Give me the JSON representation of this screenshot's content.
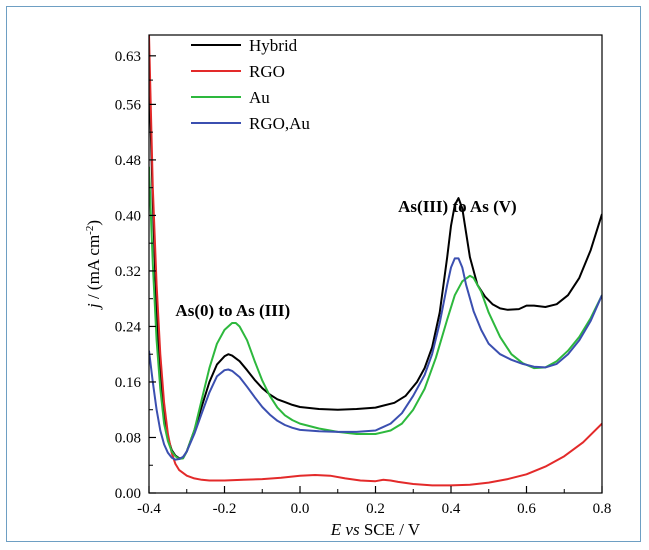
{
  "chart_data": {
    "type": "line",
    "xlabel": {
      "italic": "E vs",
      "rest": " SCE / V"
    },
    "ylabel": {
      "italic": "j",
      "rest": " / (mA cm",
      "sup": "-2",
      "end": ")"
    },
    "xlim": [
      -0.4,
      0.8
    ],
    "ylim": [
      0.0,
      0.66
    ],
    "x_ticks": [
      -0.4,
      -0.2,
      0.0,
      0.2,
      0.4,
      0.6,
      0.8
    ],
    "x_tick_labels": [
      "-0.4",
      "-0.2",
      "0.0",
      "0.2",
      "0.4",
      "0.6",
      "0.8"
    ],
    "y_ticks": [
      0.0,
      0.08,
      0.16,
      0.24,
      0.32,
      0.4,
      0.48,
      0.56,
      0.63
    ],
    "y_tick_labels": [
      "0.00",
      "0.08",
      "0.16",
      "0.24",
      "0.32",
      "0.40",
      "0.48",
      "0.56",
      "0.63"
    ],
    "grid": false,
    "legend_position": "top-left",
    "annotations": [
      {
        "text": "As(0) to As (III)",
        "x": -0.33,
        "y": 0.255
      },
      {
        "text": "As(III) to As (V)",
        "x": 0.26,
        "y": 0.405
      }
    ],
    "series": [
      {
        "name": "Hybrid",
        "color": "#000000",
        "points": [
          [
            -0.4,
            0.61
          ],
          [
            -0.39,
            0.42
          ],
          [
            -0.38,
            0.26
          ],
          [
            -0.37,
            0.17
          ],
          [
            -0.36,
            0.11
          ],
          [
            -0.35,
            0.08
          ],
          [
            -0.34,
            0.062
          ],
          [
            -0.33,
            0.054
          ],
          [
            -0.32,
            0.05
          ],
          [
            -0.31,
            0.05
          ],
          [
            -0.3,
            0.06
          ],
          [
            -0.28,
            0.09
          ],
          [
            -0.26,
            0.125
          ],
          [
            -0.24,
            0.16
          ],
          [
            -0.22,
            0.185
          ],
          [
            -0.2,
            0.197
          ],
          [
            -0.19,
            0.2
          ],
          [
            -0.18,
            0.198
          ],
          [
            -0.16,
            0.19
          ],
          [
            -0.14,
            0.177
          ],
          [
            -0.12,
            0.163
          ],
          [
            -0.1,
            0.151
          ],
          [
            -0.08,
            0.142
          ],
          [
            -0.06,
            0.135
          ],
          [
            -0.04,
            0.131
          ],
          [
            -0.02,
            0.127
          ],
          [
            0.0,
            0.124
          ],
          [
            0.05,
            0.121
          ],
          [
            0.1,
            0.12
          ],
          [
            0.15,
            0.121
          ],
          [
            0.2,
            0.123
          ],
          [
            0.25,
            0.13
          ],
          [
            0.28,
            0.14
          ],
          [
            0.31,
            0.16
          ],
          [
            0.33,
            0.18
          ],
          [
            0.35,
            0.21
          ],
          [
            0.37,
            0.26
          ],
          [
            0.39,
            0.34
          ],
          [
            0.4,
            0.385
          ],
          [
            0.41,
            0.415
          ],
          [
            0.42,
            0.425
          ],
          [
            0.43,
            0.41
          ],
          [
            0.44,
            0.375
          ],
          [
            0.45,
            0.34
          ],
          [
            0.47,
            0.3
          ],
          [
            0.49,
            0.283
          ],
          [
            0.51,
            0.272
          ],
          [
            0.53,
            0.266
          ],
          [
            0.55,
            0.264
          ],
          [
            0.58,
            0.265
          ],
          [
            0.6,
            0.27
          ],
          [
            0.62,
            0.27
          ],
          [
            0.65,
            0.268
          ],
          [
            0.68,
            0.272
          ],
          [
            0.71,
            0.285
          ],
          [
            0.74,
            0.31
          ],
          [
            0.77,
            0.35
          ],
          [
            0.8,
            0.402
          ]
        ]
      },
      {
        "name": "RGO",
        "color": "#e32a2a",
        "points": [
          [
            -0.4,
            0.66
          ],
          [
            -0.395,
            0.55
          ],
          [
            -0.39,
            0.44
          ],
          [
            -0.38,
            0.3
          ],
          [
            -0.37,
            0.2
          ],
          [
            -0.36,
            0.13
          ],
          [
            -0.35,
            0.085
          ],
          [
            -0.34,
            0.058
          ],
          [
            -0.33,
            0.042
          ],
          [
            -0.32,
            0.033
          ],
          [
            -0.3,
            0.025
          ],
          [
            -0.28,
            0.021
          ],
          [
            -0.26,
            0.019
          ],
          [
            -0.24,
            0.018
          ],
          [
            -0.2,
            0.018
          ],
          [
            -0.15,
            0.019
          ],
          [
            -0.1,
            0.02
          ],
          [
            -0.05,
            0.022
          ],
          [
            0.0,
            0.025
          ],
          [
            0.04,
            0.026
          ],
          [
            0.08,
            0.025
          ],
          [
            0.12,
            0.021
          ],
          [
            0.16,
            0.018
          ],
          [
            0.2,
            0.017
          ],
          [
            0.22,
            0.019
          ],
          [
            0.24,
            0.018
          ],
          [
            0.26,
            0.016
          ],
          [
            0.3,
            0.013
          ],
          [
            0.35,
            0.011
          ],
          [
            0.4,
            0.011
          ],
          [
            0.45,
            0.012
          ],
          [
            0.5,
            0.015
          ],
          [
            0.55,
            0.02
          ],
          [
            0.6,
            0.027
          ],
          [
            0.65,
            0.038
          ],
          [
            0.7,
            0.053
          ],
          [
            0.75,
            0.073
          ],
          [
            0.8,
            0.1
          ]
        ]
      },
      {
        "name": "Au",
        "color": "#2db83d",
        "points": [
          [
            -0.4,
            0.47
          ],
          [
            -0.39,
            0.33
          ],
          [
            -0.38,
            0.22
          ],
          [
            -0.37,
            0.15
          ],
          [
            -0.36,
            0.1
          ],
          [
            -0.35,
            0.075
          ],
          [
            -0.34,
            0.06
          ],
          [
            -0.33,
            0.053
          ],
          [
            -0.32,
            0.049
          ],
          [
            -0.31,
            0.05
          ],
          [
            -0.3,
            0.06
          ],
          [
            -0.28,
            0.09
          ],
          [
            -0.26,
            0.135
          ],
          [
            -0.24,
            0.18
          ],
          [
            -0.22,
            0.215
          ],
          [
            -0.2,
            0.235
          ],
          [
            -0.18,
            0.245
          ],
          [
            -0.17,
            0.245
          ],
          [
            -0.16,
            0.24
          ],
          [
            -0.14,
            0.22
          ],
          [
            -0.12,
            0.19
          ],
          [
            -0.1,
            0.162
          ],
          [
            -0.08,
            0.14
          ],
          [
            -0.06,
            0.123
          ],
          [
            -0.04,
            0.112
          ],
          [
            -0.02,
            0.105
          ],
          [
            0.0,
            0.1
          ],
          [
            0.05,
            0.093
          ],
          [
            0.1,
            0.088
          ],
          [
            0.15,
            0.085
          ],
          [
            0.2,
            0.085
          ],
          [
            0.24,
            0.09
          ],
          [
            0.27,
            0.1
          ],
          [
            0.3,
            0.12
          ],
          [
            0.33,
            0.15
          ],
          [
            0.36,
            0.195
          ],
          [
            0.39,
            0.25
          ],
          [
            0.41,
            0.285
          ],
          [
            0.43,
            0.305
          ],
          [
            0.45,
            0.313
          ],
          [
            0.46,
            0.31
          ],
          [
            0.48,
            0.29
          ],
          [
            0.5,
            0.26
          ],
          [
            0.53,
            0.225
          ],
          [
            0.56,
            0.2
          ],
          [
            0.59,
            0.187
          ],
          [
            0.62,
            0.18
          ],
          [
            0.65,
            0.181
          ],
          [
            0.68,
            0.19
          ],
          [
            0.71,
            0.205
          ],
          [
            0.74,
            0.225
          ],
          [
            0.77,
            0.252
          ],
          [
            0.8,
            0.285
          ]
        ]
      },
      {
        "name": "RGO,Au",
        "color": "#3b4fb0",
        "points": [
          [
            -0.4,
            0.205
          ],
          [
            -0.39,
            0.16
          ],
          [
            -0.38,
            0.12
          ],
          [
            -0.37,
            0.09
          ],
          [
            -0.36,
            0.07
          ],
          [
            -0.35,
            0.058
          ],
          [
            -0.34,
            0.051
          ],
          [
            -0.33,
            0.048
          ],
          [
            -0.32,
            0.049
          ],
          [
            -0.31,
            0.052
          ],
          [
            -0.3,
            0.06
          ],
          [
            -0.28,
            0.085
          ],
          [
            -0.26,
            0.115
          ],
          [
            -0.24,
            0.145
          ],
          [
            -0.22,
            0.168
          ],
          [
            -0.2,
            0.177
          ],
          [
            -0.19,
            0.178
          ],
          [
            -0.18,
            0.176
          ],
          [
            -0.16,
            0.167
          ],
          [
            -0.14,
            0.153
          ],
          [
            -0.12,
            0.138
          ],
          [
            -0.1,
            0.124
          ],
          [
            -0.08,
            0.113
          ],
          [
            -0.06,
            0.104
          ],
          [
            -0.04,
            0.098
          ],
          [
            -0.02,
            0.094
          ],
          [
            0.0,
            0.091
          ],
          [
            0.05,
            0.089
          ],
          [
            0.1,
            0.088
          ],
          [
            0.15,
            0.088
          ],
          [
            0.2,
            0.09
          ],
          [
            0.24,
            0.1
          ],
          [
            0.27,
            0.115
          ],
          [
            0.3,
            0.14
          ],
          [
            0.33,
            0.17
          ],
          [
            0.35,
            0.2
          ],
          [
            0.37,
            0.245
          ],
          [
            0.39,
            0.3
          ],
          [
            0.4,
            0.325
          ],
          [
            0.41,
            0.338
          ],
          [
            0.42,
            0.338
          ],
          [
            0.43,
            0.325
          ],
          [
            0.44,
            0.3
          ],
          [
            0.46,
            0.262
          ],
          [
            0.48,
            0.235
          ],
          [
            0.5,
            0.215
          ],
          [
            0.53,
            0.2
          ],
          [
            0.56,
            0.192
          ],
          [
            0.59,
            0.186
          ],
          [
            0.62,
            0.182
          ],
          [
            0.65,
            0.181
          ],
          [
            0.68,
            0.186
          ],
          [
            0.71,
            0.2
          ],
          [
            0.74,
            0.22
          ],
          [
            0.77,
            0.248
          ],
          [
            0.8,
            0.285
          ]
        ]
      }
    ]
  }
}
